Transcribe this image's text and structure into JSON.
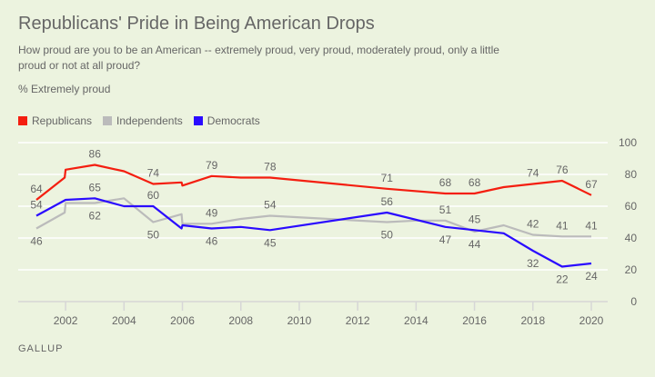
{
  "chart_data": {
    "type": "line",
    "title": "Republicans' Pride in Being American Drops",
    "subtitle": "How proud are you to be an American -- extremely proud, very proud, moderately proud, only a little proud or not at all proud?",
    "ylabel": "% Extremely proud",
    "source": "GALLUP",
    "ylim": [
      0,
      100
    ],
    "xlim": [
      2001,
      2020
    ],
    "yticks": [
      "0",
      "20",
      "40",
      "60",
      "80",
      "100"
    ],
    "xticks": [
      "2002",
      "2004",
      "2006",
      "2008",
      "2010",
      "2012",
      "2014",
      "2016",
      "2018",
      "2020"
    ],
    "grid": true,
    "legend_position": "top-left",
    "series": [
      {
        "name": "Republicans",
        "color": "#f41e10",
        "points": [
          [
            2001,
            64
          ],
          [
            2001.97,
            78
          ],
          [
            2002,
            83
          ],
          [
            2003,
            86
          ],
          [
            2004,
            82
          ],
          [
            2005,
            74
          ],
          [
            2005.97,
            75
          ],
          [
            2006,
            73
          ],
          [
            2007,
            79
          ],
          [
            2008,
            78
          ],
          [
            2009,
            78
          ],
          [
            2013,
            71
          ],
          [
            2015,
            68
          ],
          [
            2016,
            68
          ],
          [
            2017,
            72
          ],
          [
            2018,
            74
          ],
          [
            2019,
            76
          ],
          [
            2020,
            67
          ]
        ],
        "labels": [
          [
            2001,
            64,
            "above"
          ],
          [
            2003,
            86,
            "above"
          ],
          [
            2005,
            74,
            "above"
          ],
          [
            2007,
            79,
            "above"
          ],
          [
            2009,
            78,
            "above"
          ],
          [
            2013,
            71,
            "above"
          ],
          [
            2015,
            68,
            "above"
          ],
          [
            2016,
            68,
            "above"
          ],
          [
            2018,
            74,
            "above"
          ],
          [
            2019,
            76,
            "above"
          ],
          [
            2020,
            67,
            "above"
          ]
        ]
      },
      {
        "name": "Independents",
        "color": "#bbbbbb",
        "points": [
          [
            2001,
            46
          ],
          [
            2001.97,
            56
          ],
          [
            2002,
            62
          ],
          [
            2003,
            62
          ],
          [
            2004,
            65
          ],
          [
            2005,
            50
          ],
          [
            2005.97,
            55
          ],
          [
            2006,
            49
          ],
          [
            2007,
            49
          ],
          [
            2008,
            52
          ],
          [
            2009,
            54
          ],
          [
            2013,
            50
          ],
          [
            2014,
            51
          ],
          [
            2015,
            51
          ],
          [
            2016,
            44
          ],
          [
            2017,
            48
          ],
          [
            2018,
            42
          ],
          [
            2019,
            41
          ],
          [
            2020,
            41
          ]
        ],
        "labels": [
          [
            2001,
            46,
            "below"
          ],
          [
            2003,
            62,
            "below"
          ],
          [
            2005,
            50,
            "below"
          ],
          [
            2007,
            49,
            "above"
          ],
          [
            2009,
            54,
            "above"
          ],
          [
            2013,
            50,
            "below"
          ],
          [
            2015,
            51,
            "above"
          ],
          [
            2016,
            44,
            "below"
          ],
          [
            2018,
            42,
            "above"
          ],
          [
            2019,
            41,
            "above"
          ],
          [
            2020,
            41,
            "above"
          ]
        ]
      },
      {
        "name": "Democrats",
        "color": "#2a0bff",
        "points": [
          [
            2001,
            54
          ],
          [
            2002,
            64
          ],
          [
            2003,
            65
          ],
          [
            2004,
            60
          ],
          [
            2005,
            60
          ],
          [
            2005.97,
            46
          ],
          [
            2006,
            48
          ],
          [
            2007,
            46
          ],
          [
            2008,
            47
          ],
          [
            2009,
            45
          ],
          [
            2013,
            56
          ],
          [
            2015,
            47
          ],
          [
            2016,
            45
          ],
          [
            2017,
            43
          ],
          [
            2018,
            32
          ],
          [
            2019,
            22
          ],
          [
            2020,
            24
          ]
        ],
        "labels": [
          [
            2001,
            54,
            "above"
          ],
          [
            2003,
            65,
            "above"
          ],
          [
            2005,
            60,
            "above"
          ],
          [
            2007,
            46,
            "below"
          ],
          [
            2009,
            45,
            "below"
          ],
          [
            2013,
            56,
            "above"
          ],
          [
            2015,
            47,
            "below"
          ],
          [
            2016,
            45,
            "above"
          ],
          [
            2018,
            32,
            "below"
          ],
          [
            2019,
            22,
            "below"
          ],
          [
            2020,
            24,
            "below"
          ]
        ]
      }
    ]
  }
}
